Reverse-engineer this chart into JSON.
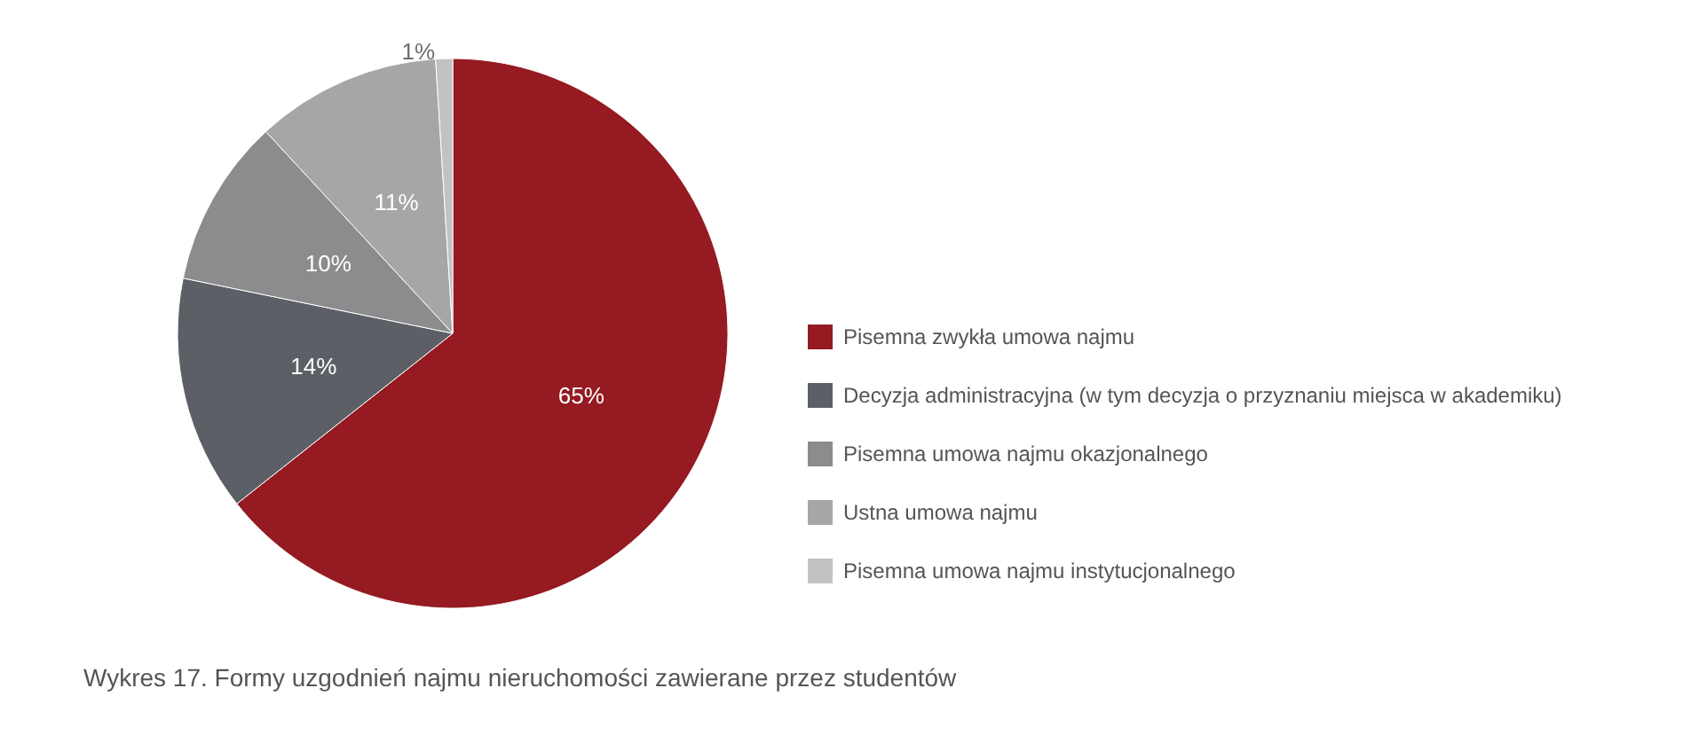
{
  "chart_data": {
    "type": "pie",
    "title": "Wykres 17. Formy uzgodnień najmu nieruchomości zawierane przez studentów",
    "categories": [
      "Pisemna zwykła umowa najmu",
      "Decyzja administracyjna (w tym decyzja o przyznaniu miejsca w akademiku)",
      "Pisemna umowa najmu okazjonalnego",
      "Ustna umowa najmu",
      "Pisemna umowa najmu instytucjonalnego"
    ],
    "values": [
      65,
      14,
      10,
      11,
      1
    ],
    "colors": [
      "#951a21",
      "#5c6066",
      "#8c8c8f",
      "#a6a6a8",
      "#c2c2c4"
    ],
    "value_labels": [
      "65%",
      "14%",
      "10%",
      "11%",
      "1%"
    ],
    "legend": "right"
  }
}
